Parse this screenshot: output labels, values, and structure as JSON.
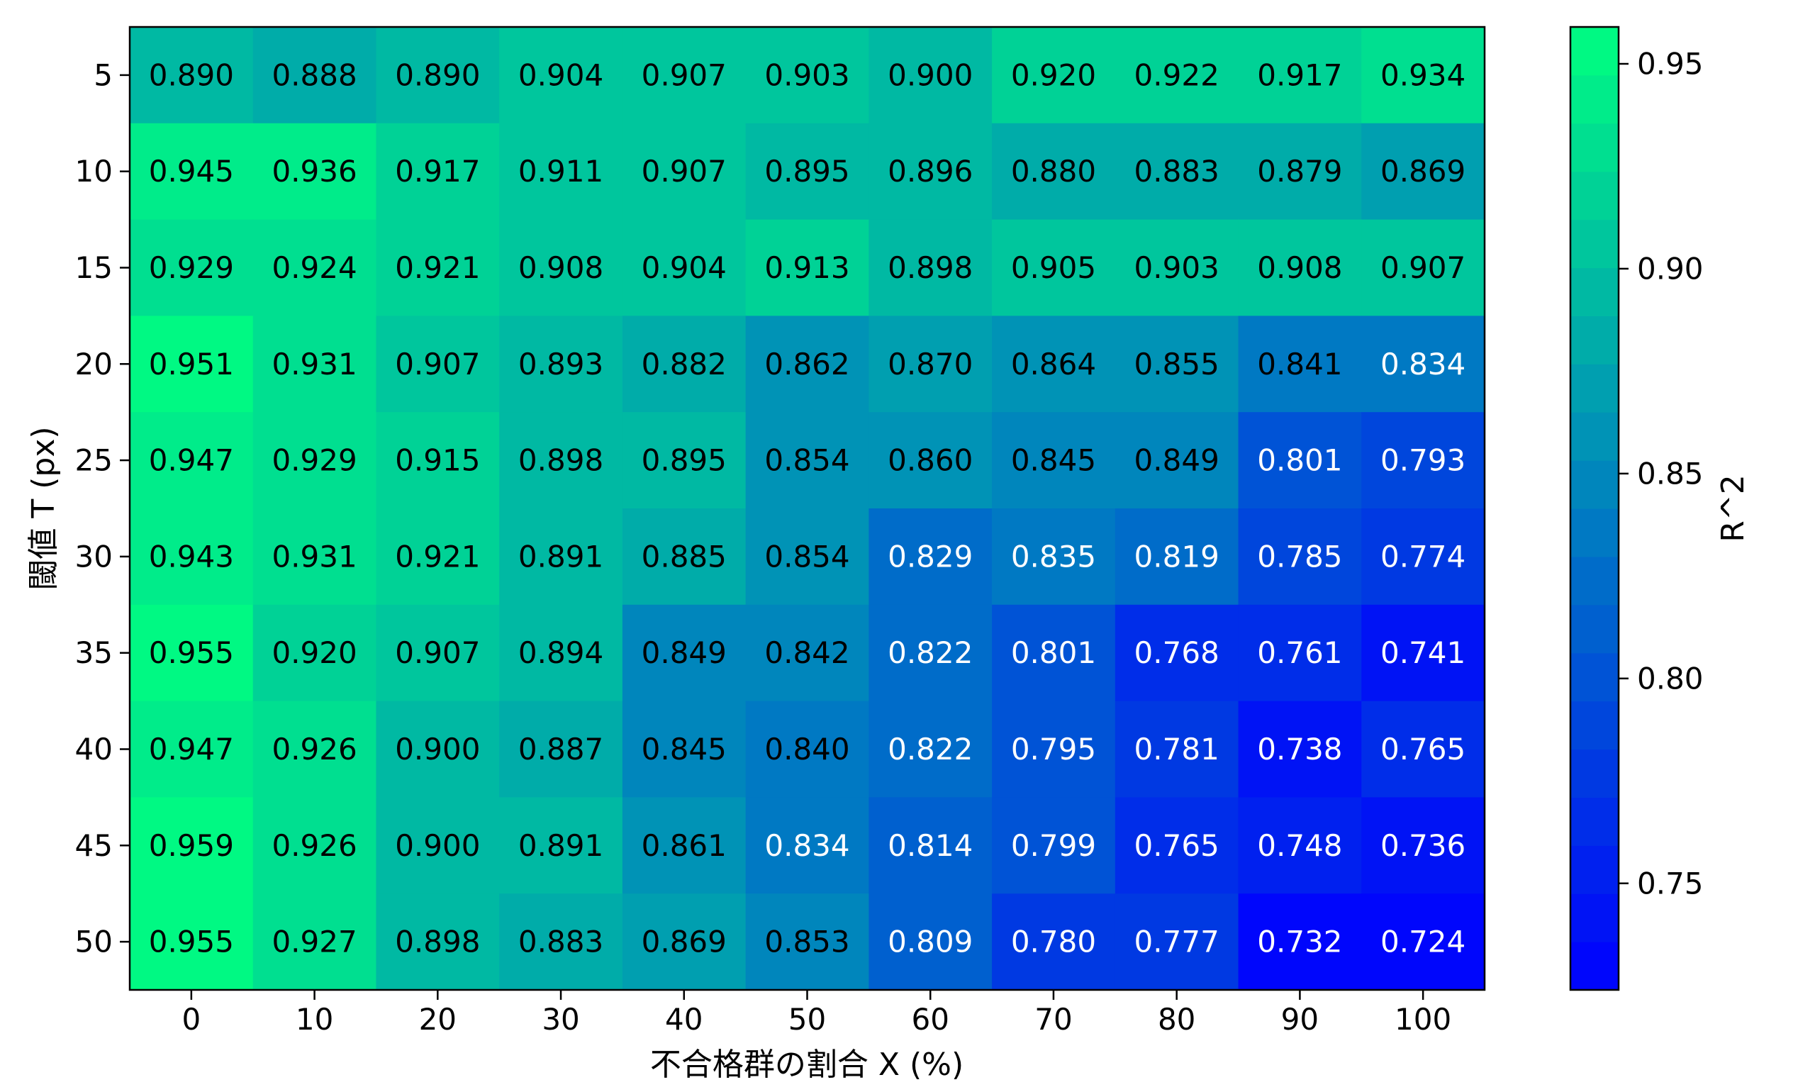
{
  "chart_data": {
    "type": "heatmap",
    "title": "",
    "xlabel": "不合格群の割合 X (%)",
    "ylabel": "閾値 T (px)",
    "x": [
      0,
      10,
      20,
      30,
      40,
      50,
      60,
      70,
      80,
      90,
      100
    ],
    "x_tick_labels": [
      "0",
      "10",
      "20",
      "30",
      "40",
      "50",
      "60",
      "70",
      "80",
      "90",
      "100"
    ],
    "y": [
      5,
      10,
      15,
      20,
      25,
      30,
      35,
      40,
      45,
      50
    ],
    "y_tick_labels": [
      "5",
      "10",
      "15",
      "20",
      "25",
      "30",
      "35",
      "40",
      "45",
      "50"
    ],
    "values": [
      [
        0.89,
        0.888,
        0.89,
        0.904,
        0.907,
        0.903,
        0.9,
        0.92,
        0.922,
        0.917,
        0.934
      ],
      [
        0.945,
        0.936,
        0.917,
        0.911,
        0.907,
        0.895,
        0.896,
        0.88,
        0.883,
        0.879,
        0.869
      ],
      [
        0.929,
        0.924,
        0.921,
        0.908,
        0.904,
        0.913,
        0.898,
        0.905,
        0.903,
        0.908,
        0.907
      ],
      [
        0.951,
        0.931,
        0.907,
        0.893,
        0.882,
        0.862,
        0.87,
        0.864,
        0.855,
        0.841,
        0.834
      ],
      [
        0.947,
        0.929,
        0.915,
        0.898,
        0.895,
        0.854,
        0.86,
        0.845,
        0.849,
        0.801,
        0.793
      ],
      [
        0.943,
        0.931,
        0.921,
        0.891,
        0.885,
        0.854,
        0.829,
        0.835,
        0.819,
        0.785,
        0.774
      ],
      [
        0.955,
        0.92,
        0.907,
        0.894,
        0.849,
        0.842,
        0.822,
        0.801,
        0.768,
        0.761,
        0.741
      ],
      [
        0.947,
        0.926,
        0.9,
        0.887,
        0.845,
        0.84,
        0.822,
        0.795,
        0.781,
        0.738,
        0.765
      ],
      [
        0.959,
        0.926,
        0.9,
        0.891,
        0.861,
        0.834,
        0.814,
        0.799,
        0.765,
        0.748,
        0.736
      ],
      [
        0.955,
        0.927,
        0.898,
        0.883,
        0.869,
        0.853,
        0.809,
        0.78,
        0.777,
        0.732,
        0.724
      ]
    ],
    "colorbar": {
      "label": "R^2",
      "colormap": "winter",
      "vmin": 0.724,
      "vmax": 0.959,
      "ticks": [
        0.75,
        0.8,
        0.85,
        0.9,
        0.95
      ],
      "tick_labels": [
        "0.75",
        "0.80",
        "0.85",
        "0.90",
        "0.95"
      ],
      "low_color": "#0000ff",
      "high_color": "#00ff80",
      "levels": 20
    },
    "annotation_format": "3 decimals",
    "annotation_colors": {
      "dark_text": "#000000",
      "light_text": "#ffffff",
      "light_text_below": 0.84
    },
    "grid": false,
    "legend": "colorbar-right"
  }
}
